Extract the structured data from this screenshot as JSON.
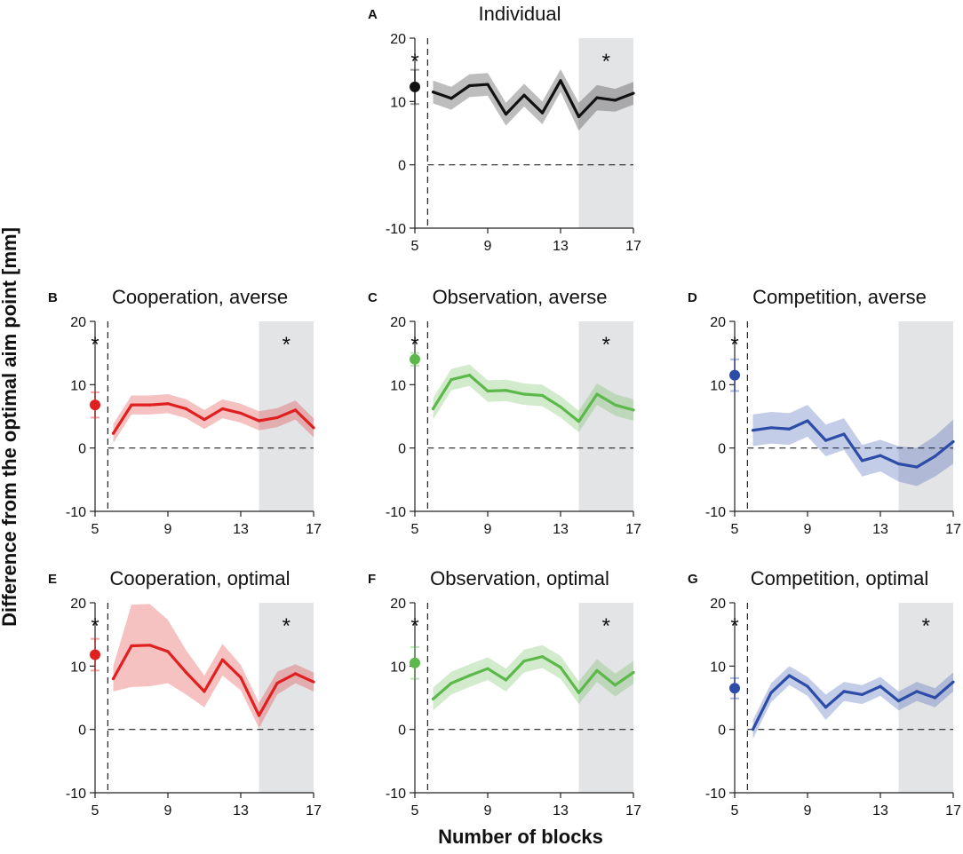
{
  "figure": {
    "ylabel": "Difference from the optimal aim point [mm]",
    "xlabel": "Number of blocks"
  },
  "chart_data": [
    {
      "type": "line",
      "letter": "A",
      "title": "Individual",
      "color": "#111111",
      "ylim": [
        -10,
        20
      ],
      "yticks": [
        "-10",
        "0",
        "10",
        "20"
      ],
      "xlim": [
        5,
        17
      ],
      "xticks": [
        "5",
        "9",
        "13",
        "17"
      ],
      "shade_range": [
        14,
        17
      ],
      "sig_point": "*",
      "sig_shade": "*",
      "point": {
        "x": 5,
        "y": 12.3,
        "err": 2.7
      },
      "x": [
        6,
        7,
        8,
        9,
        10,
        11,
        12,
        13,
        14,
        15,
        16,
        17
      ],
      "y": [
        11.5,
        10.5,
        12.5,
        12.7,
        8.0,
        11.0,
        8.2,
        13.3,
        7.6,
        10.6,
        10.2,
        11.3
      ],
      "band": [
        1.8,
        1.8,
        1.8,
        1.8,
        1.8,
        1.8,
        1.8,
        1.8,
        2.2,
        2.0,
        1.8,
        1.8
      ]
    },
    {
      "type": "line",
      "letter": "B",
      "title": "Cooperation, averse",
      "color": "#e02020",
      "ylim": [
        -10,
        20
      ],
      "yticks": [
        "-10",
        "0",
        "10",
        "20"
      ],
      "xlim": [
        5,
        17
      ],
      "xticks": [
        "5",
        "9",
        "13",
        "17"
      ],
      "shade_range": [
        14,
        17
      ],
      "sig_point": "*",
      "sig_shade": "*",
      "point": {
        "x": 5,
        "y": 6.8,
        "err": 2.0
      },
      "x": [
        6,
        7,
        8,
        9,
        10,
        11,
        12,
        13,
        14,
        15,
        16,
        17
      ],
      "y": [
        2.3,
        6.8,
        6.8,
        7.0,
        6.2,
        4.5,
        6.2,
        5.5,
        4.3,
        4.8,
        6.0,
        3.2
      ],
      "band": [
        1.5,
        1.5,
        1.5,
        1.5,
        1.5,
        1.5,
        1.5,
        1.5,
        1.5,
        1.5,
        1.5,
        1.5
      ]
    },
    {
      "type": "line",
      "letter": "C",
      "title": "Observation, averse",
      "color": "#5cb84a",
      "ylim": [
        -10,
        20
      ],
      "yticks": [
        "-10",
        "0",
        "10",
        "20"
      ],
      "xlim": [
        5,
        17
      ],
      "xticks": [
        "5",
        "9",
        "13",
        "17"
      ],
      "shade_range": [
        14,
        17
      ],
      "sig_point": "*",
      "sig_shade": "*",
      "point": {
        "x": 5,
        "y": 14.0,
        "err": 1.0
      },
      "x": [
        6,
        7,
        8,
        9,
        10,
        11,
        12,
        13,
        14,
        15,
        16,
        17
      ],
      "y": [
        6.2,
        10.8,
        11.5,
        9.0,
        9.1,
        8.5,
        8.3,
        6.5,
        4.2,
        8.5,
        6.8,
        6.0
      ],
      "band": [
        1.7,
        1.7,
        1.7,
        1.7,
        1.7,
        1.7,
        1.7,
        1.7,
        1.7,
        1.7,
        1.7,
        1.7
      ]
    },
    {
      "type": "line",
      "letter": "D",
      "title": "Competition, averse",
      "color": "#2c4ca8",
      "ylim": [
        -10,
        20
      ],
      "yticks": [
        "-10",
        "0",
        "10",
        "20"
      ],
      "xlim": [
        5,
        17
      ],
      "xticks": [
        "5",
        "9",
        "13",
        "17"
      ],
      "shade_range": [
        14,
        17
      ],
      "sig_point": "*",
      "sig_shade": "",
      "point": {
        "x": 5,
        "y": 11.5,
        "err": 2.5
      },
      "x": [
        6,
        7,
        8,
        9,
        10,
        11,
        12,
        13,
        14,
        15,
        16,
        17
      ],
      "y": [
        2.8,
        3.2,
        3.0,
        4.3,
        1.2,
        2.2,
        -2.0,
        -1.2,
        -2.5,
        -3.0,
        -1.3,
        1.0
      ],
      "band": [
        2.5,
        2.5,
        2.5,
        2.5,
        2.5,
        2.5,
        2.5,
        2.5,
        2.8,
        3.0,
        3.2,
        3.5
      ]
    },
    {
      "type": "line",
      "letter": "E",
      "title": "Cooperation, optimal",
      "color": "#e02020",
      "ylim": [
        -10,
        20
      ],
      "yticks": [
        "-10",
        "0",
        "10",
        "20"
      ],
      "xlim": [
        5,
        17
      ],
      "xticks": [
        "5",
        "9",
        "13",
        "17"
      ],
      "shade_range": [
        14,
        17
      ],
      "sig_point": "*",
      "sig_shade": "*",
      "point": {
        "x": 5,
        "y": 11.8,
        "err": 2.5
      },
      "x": [
        6,
        7,
        8,
        9,
        10,
        11,
        12,
        13,
        14,
        15,
        16,
        17
      ],
      "y": [
        8.0,
        13.2,
        13.3,
        12.3,
        9.0,
        6.0,
        11.0,
        8.2,
        2.2,
        7.3,
        8.8,
        7.5
      ],
      "band": [
        2.0,
        6.5,
        6.5,
        5.0,
        3.5,
        2.5,
        2.5,
        2.0,
        2.0,
        1.8,
        1.5,
        1.5
      ]
    },
    {
      "type": "line",
      "letter": "F",
      "title": "Observation, optimal",
      "color": "#5cb84a",
      "ylim": [
        -10,
        20
      ],
      "yticks": [
        "-10",
        "0",
        "10",
        "20"
      ],
      "xlim": [
        5,
        17
      ],
      "xticks": [
        "5",
        "9",
        "13",
        "17"
      ],
      "shade_range": [
        14,
        17
      ],
      "sig_point": "*",
      "sig_shade": "*",
      "point": {
        "x": 5,
        "y": 10.5,
        "err": 2.5
      },
      "x": [
        6,
        7,
        8,
        9,
        10,
        11,
        12,
        13,
        14,
        15,
        16,
        17
      ],
      "y": [
        4.8,
        7.3,
        8.5,
        9.6,
        7.8,
        10.8,
        11.5,
        9.8,
        5.8,
        9.3,
        7.0,
        9.0
      ],
      "band": [
        1.8,
        1.8,
        1.8,
        1.8,
        1.8,
        1.8,
        1.8,
        1.8,
        1.8,
        1.8,
        1.8,
        1.8
      ]
    },
    {
      "type": "line",
      "letter": "G",
      "title": "Competition, optimal",
      "color": "#2c4ca8",
      "ylim": [
        -10,
        20
      ],
      "yticks": [
        "-10",
        "0",
        "10",
        "20"
      ],
      "xlim": [
        5,
        17
      ],
      "xticks": [
        "5",
        "9",
        "13",
        "17"
      ],
      "shade_range": [
        14,
        17
      ],
      "sig_point": "*",
      "sig_shade": "*",
      "point": {
        "x": 5,
        "y": 6.5,
        "err": 1.6
      },
      "x": [
        6,
        7,
        8,
        9,
        10,
        11,
        12,
        13,
        14,
        15,
        16,
        17
      ],
      "y": [
        0.0,
        5.8,
        8.5,
        6.8,
        3.5,
        6.0,
        5.5,
        6.8,
        4.5,
        6.0,
        5.0,
        7.5
      ],
      "band": [
        1.5,
        1.5,
        1.5,
        1.5,
        2.0,
        1.5,
        1.5,
        1.5,
        1.5,
        1.5,
        1.5,
        1.5
      ]
    }
  ]
}
